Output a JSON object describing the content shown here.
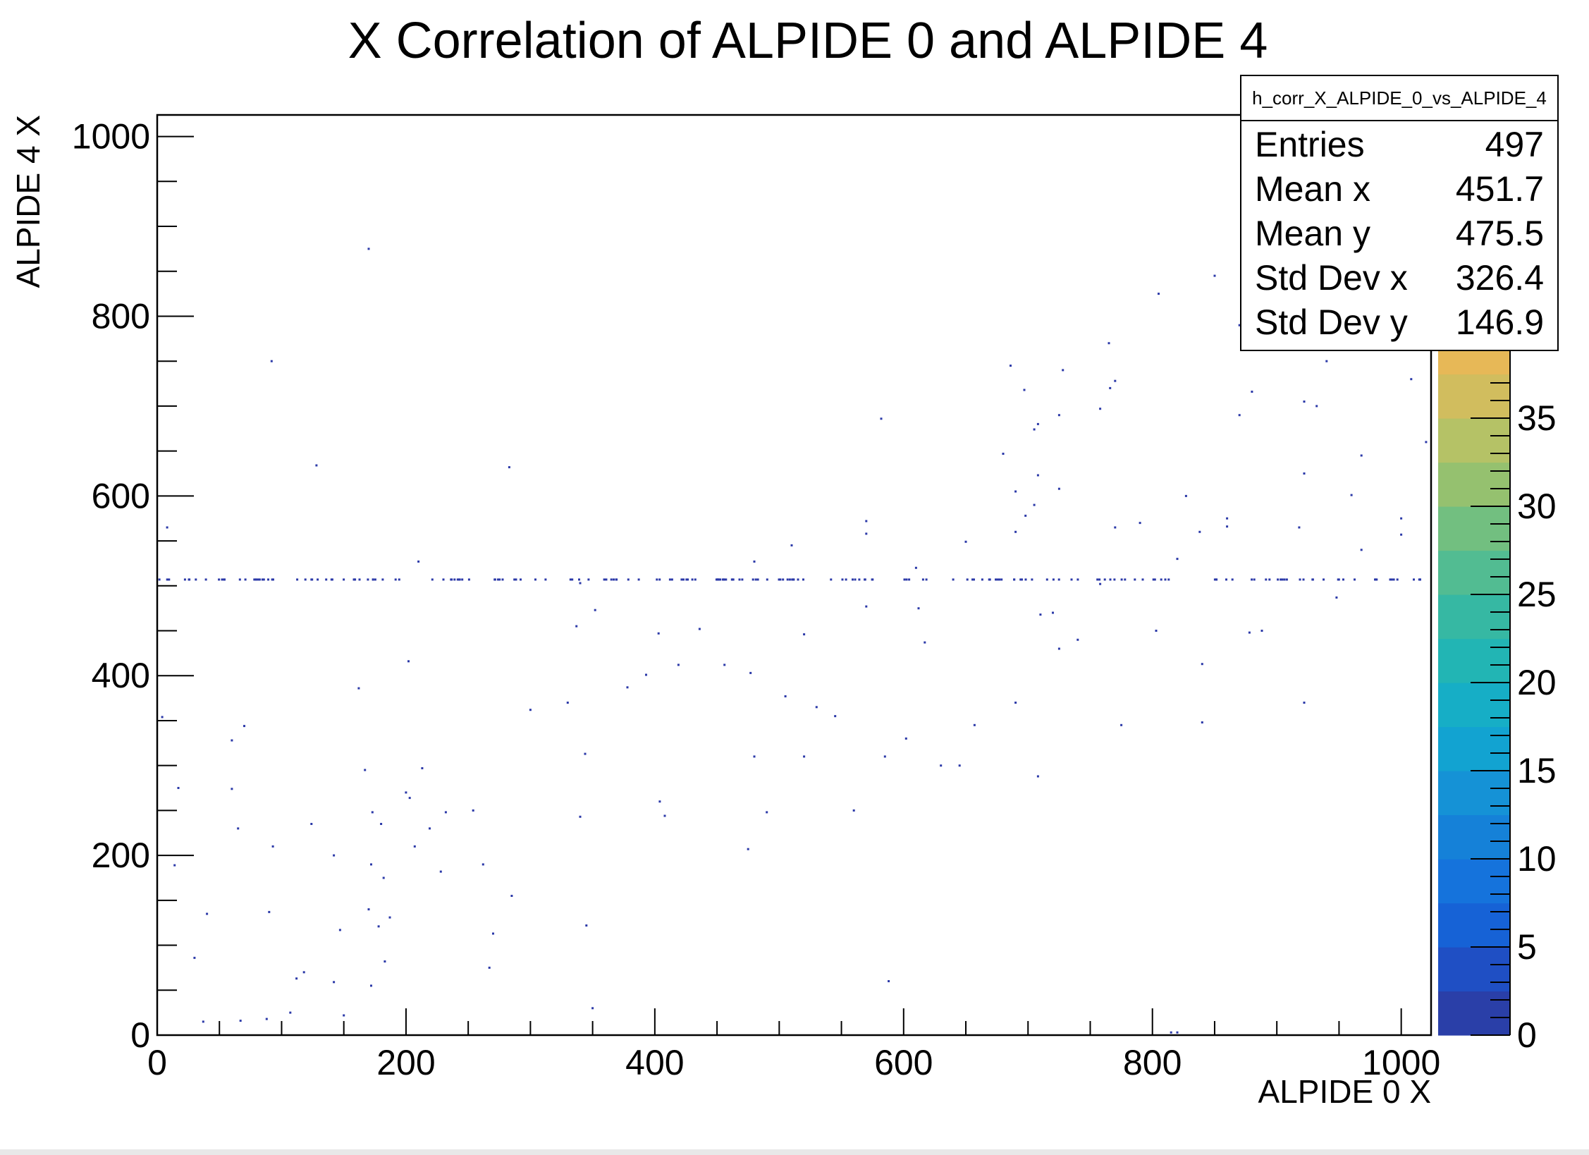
{
  "chart_data": {
    "type": "heatmap",
    "title": "X Correlation of ALPIDE 0 and ALPIDE 4",
    "xlabel": "ALPIDE 0 X",
    "ylabel": "ALPIDE 4 X",
    "xlim": [
      0,
      1024
    ],
    "ylim": [
      0,
      1024
    ],
    "x_ticks": [
      0,
      200,
      400,
      600,
      800,
      1000
    ],
    "y_ticks": [
      0,
      200,
      400,
      600,
      800,
      1000
    ],
    "colorbar": {
      "min": 0,
      "max": 40,
      "ticks": [
        0,
        5,
        10,
        15,
        20,
        25,
        30,
        35
      ],
      "colors": [
        "#2a3fa8",
        "#1f4fc4",
        "#1662d6",
        "#1573dc",
        "#1581d8",
        "#1592d6",
        "#12a3d1",
        "#16aec6",
        "#22b5b4",
        "#36b8a3",
        "#52bc92",
        "#72bf80",
        "#95c16f",
        "#b5c266",
        "#d1bd5e",
        "#e7b857"
      ]
    },
    "band": {
      "y": 507,
      "x_min": 0,
      "x_max": 1024,
      "count": 200
    },
    "points": [
      [
        170,
        875
      ],
      [
        92,
        750
      ],
      [
        128,
        634
      ],
      [
        283,
        632
      ],
      [
        8,
        565
      ],
      [
        210,
        527
      ],
      [
        340,
        503
      ],
      [
        352,
        473
      ],
      [
        337,
        455
      ],
      [
        202,
        416
      ],
      [
        403,
        447
      ],
      [
        419,
        412
      ],
      [
        378,
        387
      ],
      [
        393,
        401
      ],
      [
        300,
        362
      ],
      [
        330,
        370
      ],
      [
        162,
        386
      ],
      [
        4,
        354
      ],
      [
        70,
        344
      ],
      [
        60,
        328
      ],
      [
        344,
        313
      ],
      [
        17,
        275
      ],
      [
        60,
        274
      ],
      [
        200,
        270
      ],
      [
        167,
        295
      ],
      [
        213,
        297
      ],
      [
        203,
        264
      ],
      [
        180,
        235
      ],
      [
        173,
        248
      ],
      [
        232,
        248
      ],
      [
        254,
        250
      ],
      [
        219,
        230
      ],
      [
        124,
        235
      ],
      [
        65,
        230
      ],
      [
        93,
        210
      ],
      [
        142,
        200
      ],
      [
        207,
        210
      ],
      [
        172,
        190
      ],
      [
        262,
        190
      ],
      [
        14,
        189
      ],
      [
        182,
        175
      ],
      [
        228,
        182
      ],
      [
        285,
        155
      ],
      [
        40,
        135
      ],
      [
        90,
        137
      ],
      [
        170,
        140
      ],
      [
        187,
        131
      ],
      [
        147,
        117
      ],
      [
        178,
        121
      ],
      [
        345,
        122
      ],
      [
        270,
        113
      ],
      [
        30,
        86
      ],
      [
        118,
        70
      ],
      [
        183,
        82
      ],
      [
        112,
        63
      ],
      [
        142,
        59
      ],
      [
        267,
        75
      ],
      [
        172,
        55
      ],
      [
        107,
        25
      ],
      [
        150,
        22
      ],
      [
        37,
        15
      ],
      [
        67,
        16
      ],
      [
        88,
        18
      ],
      [
        350,
        30
      ],
      [
        588,
        60
      ],
      [
        480,
        310
      ],
      [
        475,
        207
      ],
      [
        490,
        248
      ],
      [
        560,
        250
      ],
      [
        404,
        260
      ],
      [
        408,
        244
      ],
      [
        340,
        243
      ],
      [
        585,
        310
      ],
      [
        602,
        330
      ],
      [
        530,
        365
      ],
      [
        545,
        355
      ],
      [
        505,
        377
      ],
      [
        520,
        310
      ],
      [
        630,
        300
      ],
      [
        645,
        300
      ],
      [
        657,
        345
      ],
      [
        708,
        288
      ],
      [
        690,
        370
      ],
      [
        775,
        345
      ],
      [
        840,
        348
      ],
      [
        922,
        370
      ],
      [
        840,
        413
      ],
      [
        803,
        450
      ],
      [
        888,
        450
      ],
      [
        878,
        448
      ],
      [
        740,
        440
      ],
      [
        725,
        430
      ],
      [
        720,
        470
      ],
      [
        710,
        468
      ],
      [
        570,
        477
      ],
      [
        612,
        475
      ],
      [
        617,
        437
      ],
      [
        520,
        446
      ],
      [
        436,
        452
      ],
      [
        456,
        412
      ],
      [
        477,
        403
      ],
      [
        480,
        527
      ],
      [
        510,
        545
      ],
      [
        570,
        572
      ],
      [
        570,
        558
      ],
      [
        610,
        520
      ],
      [
        650,
        549
      ],
      [
        690,
        560
      ],
      [
        698,
        578
      ],
      [
        705,
        590
      ],
      [
        690,
        605
      ],
      [
        708,
        623
      ],
      [
        680,
        647
      ],
      [
        820,
        530
      ],
      [
        838,
        560
      ],
      [
        860,
        575
      ],
      [
        860,
        566
      ],
      [
        770,
        565
      ],
      [
        790,
        570
      ],
      [
        918,
        565
      ],
      [
        960,
        601
      ],
      [
        968,
        540
      ],
      [
        1000,
        557
      ],
      [
        948,
        487
      ],
      [
        1000,
        575
      ],
      [
        827,
        600
      ],
      [
        922,
        625
      ],
      [
        968,
        645
      ],
      [
        1020,
        660
      ],
      [
        582,
        686
      ],
      [
        705,
        674
      ],
      [
        725,
        690
      ],
      [
        708,
        680
      ],
      [
        758,
        697
      ],
      [
        766,
        720
      ],
      [
        770,
        728
      ],
      [
        686,
        745
      ],
      [
        697,
        718
      ],
      [
        728,
        740
      ],
      [
        765,
        770
      ],
      [
        850,
        845
      ],
      [
        805,
        825
      ],
      [
        895,
        800
      ],
      [
        870,
        790
      ],
      [
        880,
        800
      ],
      [
        880,
        716
      ],
      [
        870,
        690
      ],
      [
        922,
        705
      ],
      [
        932,
        700
      ],
      [
        940,
        750
      ],
      [
        1008,
        730
      ],
      [
        758,
        502
      ],
      [
        725,
        608
      ],
      [
        815,
        3
      ],
      [
        820,
        3
      ]
    ],
    "stats": {
      "name": "h_corr_X_ALPIDE_0_vs_ALPIDE_4",
      "rows": [
        {
          "label": "Entries",
          "value": "497"
        },
        {
          "label": "Mean x",
          "value": "451.7"
        },
        {
          "label": "Mean y",
          "value": "475.5"
        },
        {
          "label": "Std Dev x",
          "value": "326.4"
        },
        {
          "label": "Std Dev y",
          "value": "146.9"
        }
      ]
    },
    "point_color": "#2b39a8"
  }
}
